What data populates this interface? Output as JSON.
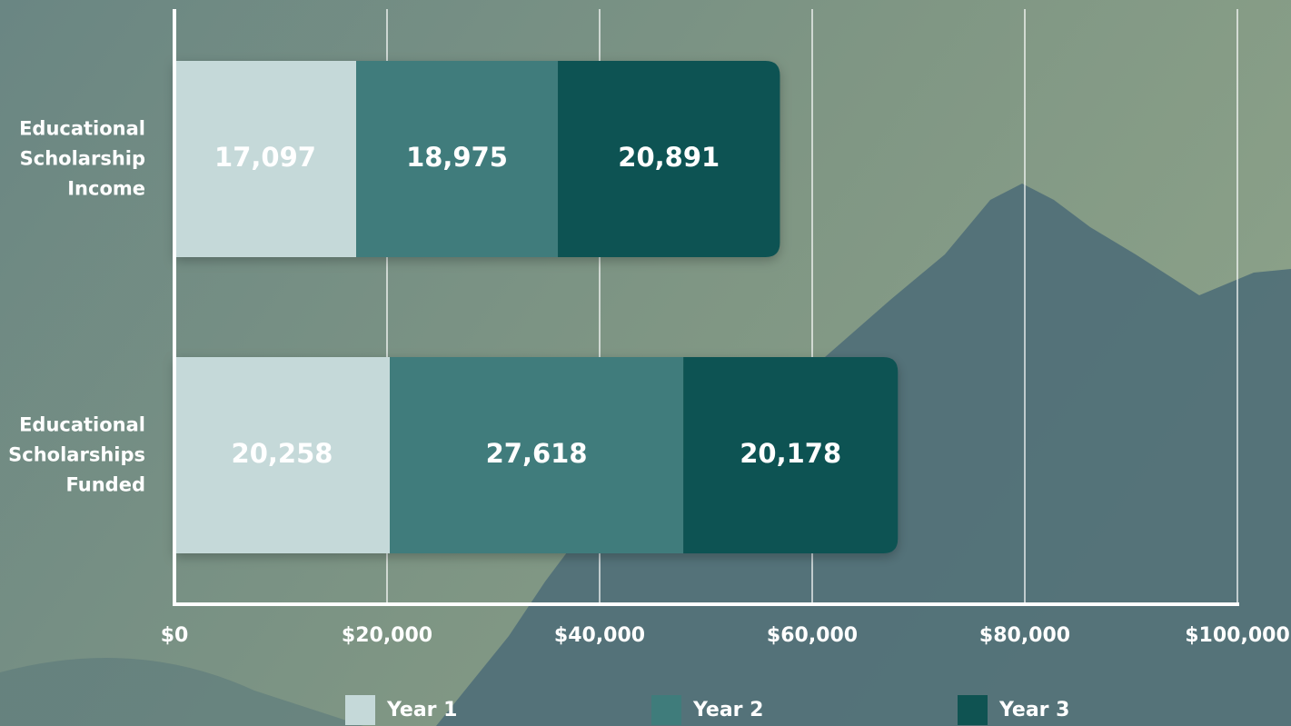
{
  "chart_data": {
    "type": "stacked-bar-horizontal",
    "categories": [
      "Educational Scholarship Income",
      "Educational Scholarships Funded"
    ],
    "series": [
      {
        "name": "Year 1",
        "color": "#c5d9d9",
        "values": [
          17097,
          20258
        ],
        "value_labels": [
          "17,097",
          "20,258"
        ]
      },
      {
        "name": "Year 2",
        "color": "#3f7c7b",
        "values": [
          18975,
          27618
        ],
        "value_labels": [
          "18,975",
          "27,618"
        ]
      },
      {
        "name": "Year 3",
        "color": "#0f5352",
        "values": [
          20891,
          20178
        ],
        "value_labels": [
          "20,891",
          "20,178"
        ]
      }
    ],
    "xlim": [
      0,
      100000
    ],
    "xticks": [
      {
        "value": 0,
        "label": "$0"
      },
      {
        "value": 20000,
        "label": "$20,000"
      },
      {
        "value": 40000,
        "label": "$40,000"
      },
      {
        "value": 60000,
        "label": "$60,000"
      },
      {
        "value": 80000,
        "label": "$80,000"
      },
      {
        "value": 100000,
        "label": "$100,000"
      }
    ],
    "grid": true,
    "legend": "bottom"
  }
}
